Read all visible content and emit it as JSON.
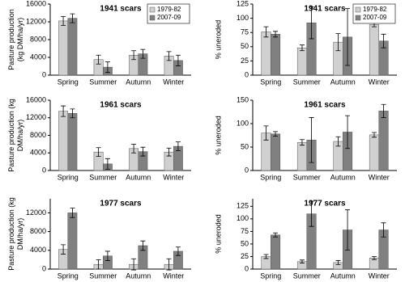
{
  "chart_data": [
    {
      "type": "bar",
      "title": "1941 scars",
      "ylabel": [
        "Pasture production",
        "(kg DM/ha/yr)"
      ],
      "categories": [
        "Spring",
        "Summer",
        "Autumn",
        "Winter"
      ],
      "series": [
        {
          "name": "1979-82",
          "color": "#d0d0d0",
          "values": [
            12200,
            3500,
            4500,
            4300
          ],
          "errors": [
            1000,
            1000,
            1000,
            1000
          ]
        },
        {
          "name": "2007-09",
          "color": "#808080",
          "values": [
            12800,
            1800,
            4800,
            3300
          ],
          "errors": [
            1000,
            1200,
            1000,
            1200
          ]
        }
      ],
      "ylim": [
        0,
        16000
      ],
      "yticks": [
        0,
        4000,
        8000,
        12000,
        16000
      ],
      "legend": "upper right"
    },
    {
      "type": "bar",
      "title": "1941 scars",
      "ylabel": [
        "% uneroded"
      ],
      "categories": [
        "Spring",
        "Summer",
        "Autumn",
        "Winter"
      ],
      "series": [
        {
          "name": "1979-82",
          "color": "#d0d0d0",
          "values": [
            76,
            48,
            58,
            89
          ],
          "errors": [
            9,
            5,
            15,
            4
          ]
        },
        {
          "name": "2007-09",
          "color": "#808080",
          "values": [
            72,
            92,
            67,
            60
          ],
          "errors": [
            5,
            28,
            50,
            12
          ]
        }
      ],
      "ylim": [
        0,
        125
      ],
      "yticks": [
        0,
        25,
        50,
        75,
        100,
        125
      ],
      "legend": "upper right"
    },
    {
      "type": "bar",
      "title": "1961 scars",
      "ylabel": [
        "Pasture production (kg",
        "DM/ha/yr)"
      ],
      "categories": [
        "Spring",
        "Summer",
        "Autumn",
        "Winter"
      ],
      "series": [
        {
          "color": "#d0d0d0",
          "values": [
            13500,
            4200,
            5000,
            4200
          ],
          "errors": [
            1200,
            1000,
            1000,
            900
          ]
        },
        {
          "color": "#808080",
          "values": [
            13000,
            1500,
            4300,
            5500
          ],
          "errors": [
            1000,
            1200,
            1000,
            1000
          ]
        }
      ],
      "ylim": [
        0,
        16000
      ],
      "yticks": [
        0,
        4000,
        8000,
        12000,
        16000
      ]
    },
    {
      "type": "bar",
      "title": "1961 scars",
      "ylabel": [
        "% uneroded"
      ],
      "categories": [
        "Spring",
        "Summer",
        "Autumn",
        "Winter"
      ],
      "series": [
        {
          "color": "#d0d0d0",
          "values": [
            80,
            60,
            62,
            76
          ],
          "errors": [
            15,
            6,
            10,
            5
          ]
        },
        {
          "color": "#808080",
          "values": [
            78,
            65,
            82,
            127
          ],
          "errors": [
            5,
            48,
            35,
            14
          ]
        }
      ],
      "ylim": [
        0,
        150
      ],
      "yticks": [
        0,
        50,
        100,
        150
      ]
    },
    {
      "type": "bar",
      "title": "1977 scars",
      "ylabel": [
        "Pasture production (kg",
        "DM/ha/yr)"
      ],
      "categories": [
        "Spring",
        "Summer",
        "Autumn",
        "Winter"
      ],
      "series": [
        {
          "color": "#d0d0d0",
          "values": [
            4200,
            1000,
            1000,
            1000
          ],
          "errors": [
            1000,
            1000,
            1200,
            1200
          ]
        },
        {
          "color": "#808080",
          "values": [
            12000,
            2800,
            5000,
            3800
          ],
          "errors": [
            1000,
            1000,
            1000,
            900
          ]
        }
      ],
      "ylim": [
        0,
        15000
      ],
      "yticks": [
        0,
        4000,
        8000,
        12000
      ]
    },
    {
      "type": "bar",
      "title": "1977 scars",
      "ylabel": [
        "% uneroded"
      ],
      "categories": [
        "Spring",
        "Summer",
        "Autumn",
        "Winter"
      ],
      "series": [
        {
          "color": "#d0d0d0",
          "values": [
            25,
            15,
            13,
            22
          ],
          "errors": [
            4,
            3,
            4,
            3
          ]
        },
        {
          "color": "#808080",
          "values": [
            68,
            110,
            78,
            78
          ],
          "errors": [
            4,
            25,
            40,
            14
          ]
        }
      ],
      "ylim": [
        0,
        140
      ],
      "yticks": [
        0,
        25,
        50,
        75,
        100,
        125
      ]
    }
  ]
}
